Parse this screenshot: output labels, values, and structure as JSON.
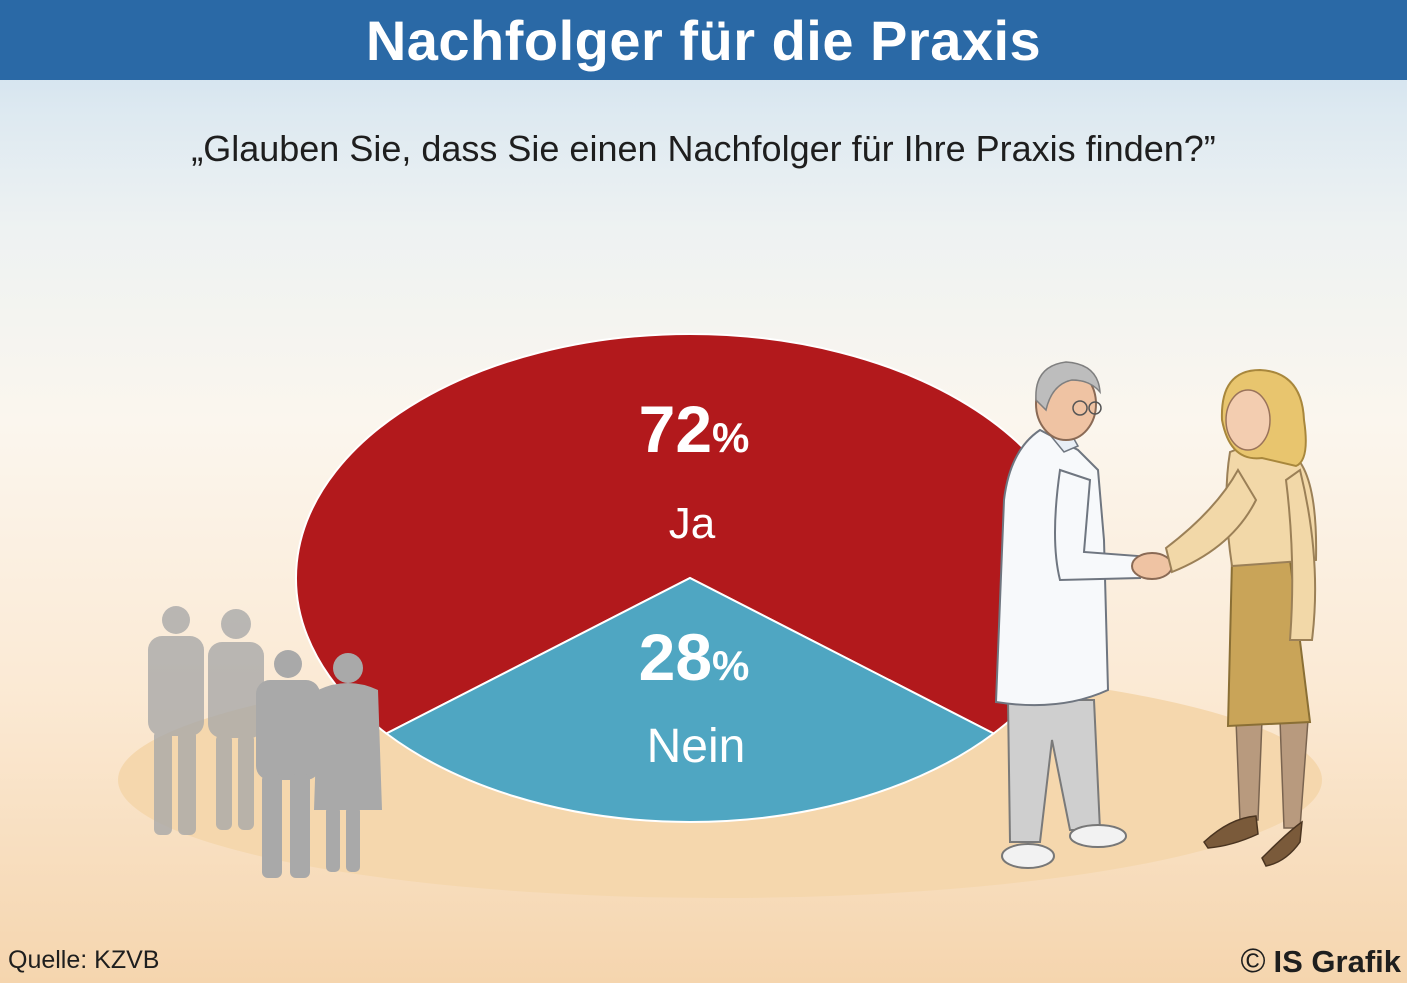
{
  "header": {
    "title": "Nachfolger für die Praxis"
  },
  "question": "„Glauben Sie, dass Sie einen Nachfolger für Ihre Praxis finden?”",
  "chart_data": {
    "type": "pie",
    "categories": [
      "Ja",
      "Nein"
    ],
    "values": [
      72,
      28
    ],
    "unit": "%",
    "colors": [
      "#b2191c",
      "#4fa6c2"
    ],
    "labels": [
      {
        "value": "72",
        "unit": "%",
        "label": "Ja"
      },
      {
        "value": "28",
        "unit": "%",
        "label": "Nein"
      }
    ]
  },
  "footer": {
    "source": "Quelle: KZVB",
    "copyright_icon": "©",
    "copyright": "IS Grafik"
  },
  "icons": {
    "people": "people-silhouette-icon",
    "handshake": "handshake-illustration-icon"
  }
}
